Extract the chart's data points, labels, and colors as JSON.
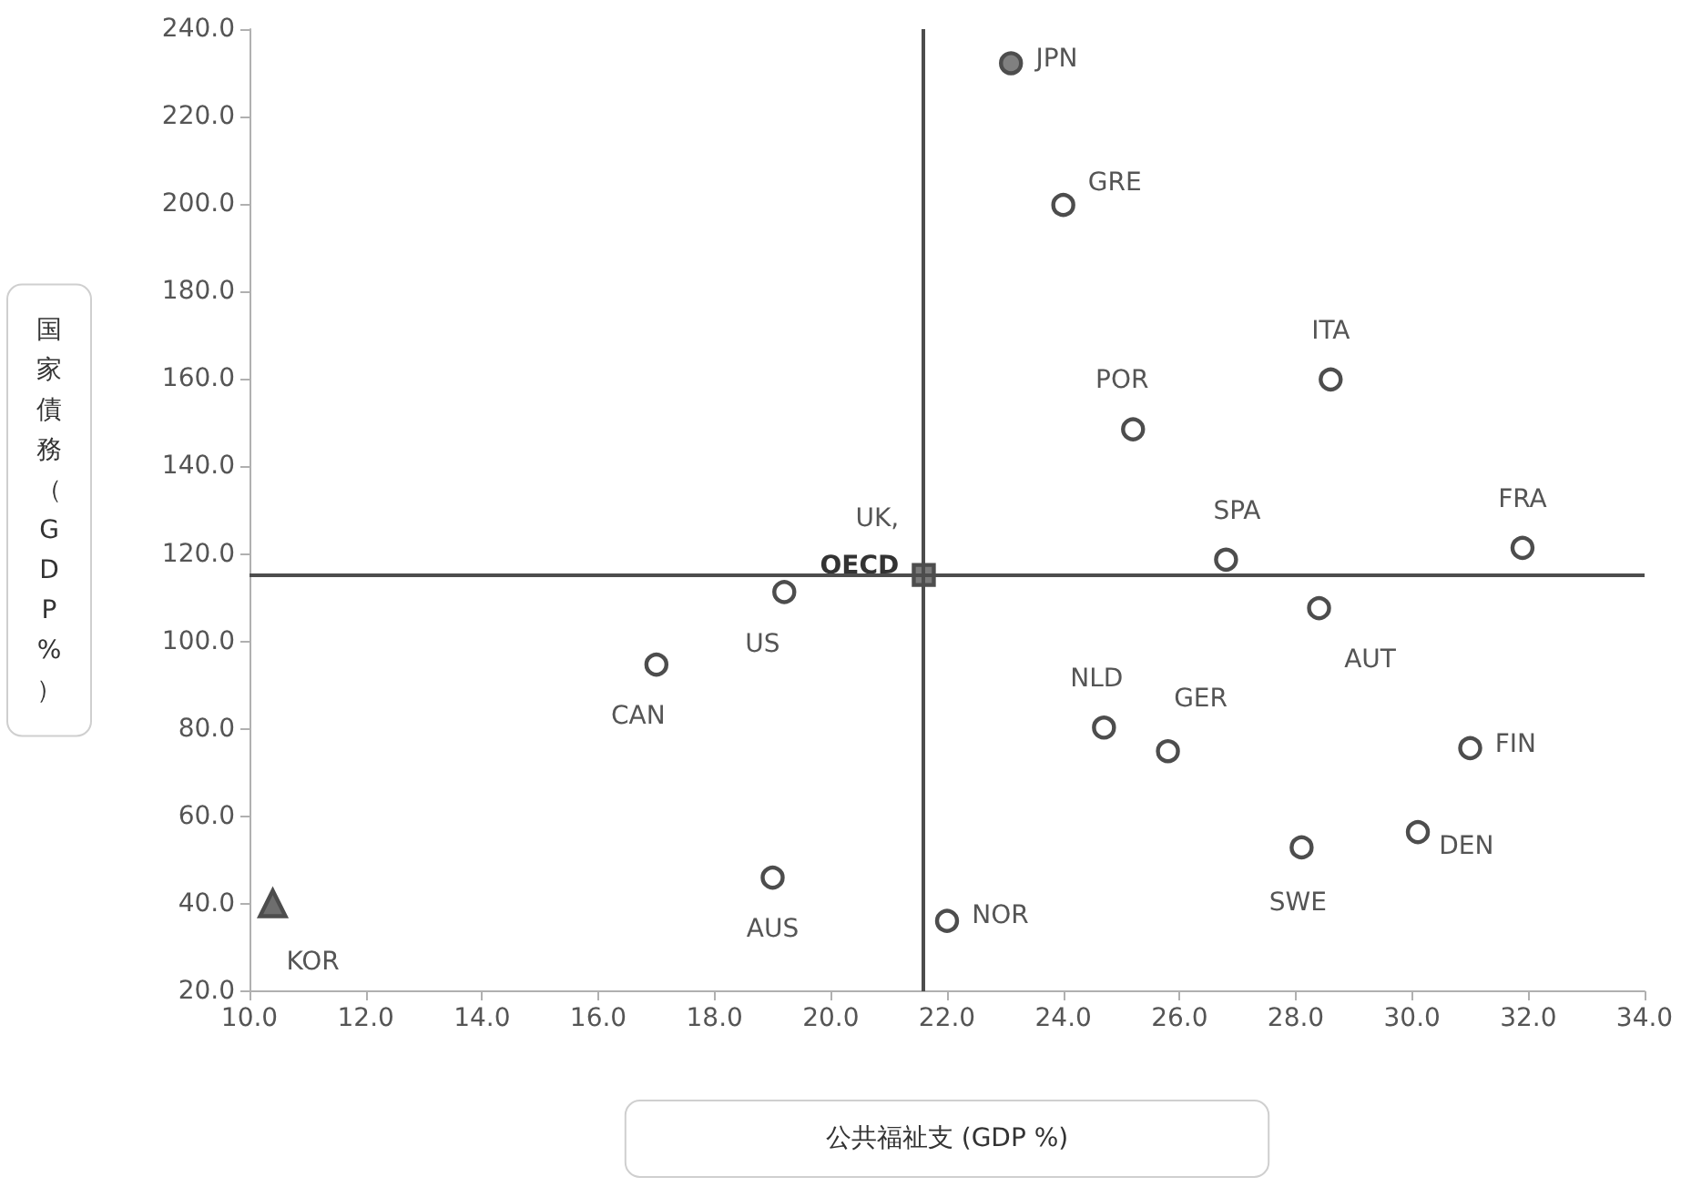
{
  "chart_data": {
    "type": "scatter",
    "xlabel": "公共福祉支 (GDP %)",
    "ylabel": "国家債務（GDP%）",
    "xlim": [
      10,
      34
    ],
    "ylim": [
      20,
      240
    ],
    "xticks": [
      {
        "value": 10,
        "label": "10.0"
      },
      {
        "value": 12,
        "label": "12.0"
      },
      {
        "value": 14,
        "label": "14.0"
      },
      {
        "value": 16,
        "label": "16.0"
      },
      {
        "value": 18,
        "label": "18.0"
      },
      {
        "value": 20,
        "label": "20.0"
      },
      {
        "value": 22,
        "label": "22.0"
      },
      {
        "value": 24,
        "label": "24.0"
      },
      {
        "value": 26,
        "label": "26.0"
      },
      {
        "value": 28,
        "label": "28.0"
      },
      {
        "value": 30,
        "label": "30.0"
      },
      {
        "value": 32,
        "label": "32.0"
      },
      {
        "value": 34,
        "label": "34.0"
      }
    ],
    "yticks": [
      {
        "value": 20,
        "label": "20.0"
      },
      {
        "value": 40,
        "label": "40.0"
      },
      {
        "value": 60,
        "label": "60.0"
      },
      {
        "value": 80,
        "label": "80.0"
      },
      {
        "value": 100,
        "label": "100.0"
      },
      {
        "value": 120,
        "label": "120.0"
      },
      {
        "value": 140,
        "label": "140.0"
      },
      {
        "value": 160,
        "label": "160.0"
      },
      {
        "value": 180,
        "label": "180.0"
      },
      {
        "value": 200,
        "label": "200.0"
      },
      {
        "value": 220,
        "label": "220.0"
      },
      {
        "value": 240,
        "label": "240.0"
      }
    ],
    "grid": false,
    "legend": false,
    "ref_lines": [
      {
        "axis": "x",
        "value": 21.6,
        "color": "#4d4d4d"
      },
      {
        "axis": "y",
        "value": 115.2,
        "color": "#4d4d4d"
      }
    ],
    "series": [
      {
        "name": "JPN",
        "x": [
          23.1
        ],
        "values": [
          232.2
        ],
        "marker": "circle",
        "color": "#808080"
      },
      {
        "name": "GRE",
        "x": [
          24.0
        ],
        "values": [
          199.8
        ],
        "marker": "circle",
        "color": "#ffffff"
      },
      {
        "name": "POR",
        "x": [
          25.2
        ],
        "values": [
          148.5
        ],
        "marker": "circle",
        "color": "#ffffff"
      },
      {
        "name": "ITA",
        "x": [
          28.6
        ],
        "values": [
          159.9
        ],
        "marker": "circle",
        "color": "#ffffff"
      },
      {
        "name": "SPA",
        "x": [
          26.8
        ],
        "values": [
          118.7
        ],
        "marker": "circle",
        "color": "#ffffff"
      },
      {
        "name": "FRA",
        "x": [
          31.9
        ],
        "values": [
          121.4
        ],
        "marker": "circle",
        "color": "#ffffff"
      },
      {
        "name": "UK,\nOECD",
        "x": [
          21.6
        ],
        "values": [
          115.2
        ],
        "marker": "square",
        "color": "#7a7a7a"
      },
      {
        "name": "US",
        "x": [
          19.2
        ],
        "values": [
          111.3
        ],
        "marker": "circle",
        "color": "#ffffff"
      },
      {
        "name": "CAN",
        "x": [
          17.0
        ],
        "values": [
          94.7
        ],
        "marker": "circle",
        "color": "#ffffff"
      },
      {
        "name": "AUS",
        "x": [
          19.0
        ],
        "values": [
          46.0
        ],
        "marker": "circle",
        "color": "#ffffff"
      },
      {
        "name": "KOR",
        "x": [
          10.4
        ],
        "values": [
          40.1
        ],
        "marker": "triangle",
        "color": "#6e6e6e"
      },
      {
        "name": "NOR",
        "x": [
          22.0
        ],
        "values": [
          36.1
        ],
        "marker": "circle",
        "color": "#ffffff"
      },
      {
        "name": "AUT",
        "x": [
          28.4
        ],
        "values": [
          107.6
        ],
        "marker": "circle",
        "color": "#ffffff"
      },
      {
        "name": "NLD",
        "x": [
          24.7
        ],
        "values": [
          80.3
        ],
        "marker": "circle",
        "color": "#ffffff"
      },
      {
        "name": "GER",
        "x": [
          25.8
        ],
        "values": [
          74.9
        ],
        "marker": "circle",
        "color": "#ffffff"
      },
      {
        "name": "FIN",
        "x": [
          31.0
        ],
        "values": [
          75.6
        ],
        "marker": "circle",
        "color": "#ffffff"
      },
      {
        "name": "SWE",
        "x": [
          28.1
        ],
        "values": [
          52.9
        ],
        "marker": "circle",
        "color": "#ffffff"
      },
      {
        "name": "DEN",
        "x": [
          30.1
        ],
        "values": [
          56.4
        ],
        "marker": "circle",
        "color": "#ffffff"
      }
    ]
  }
}
